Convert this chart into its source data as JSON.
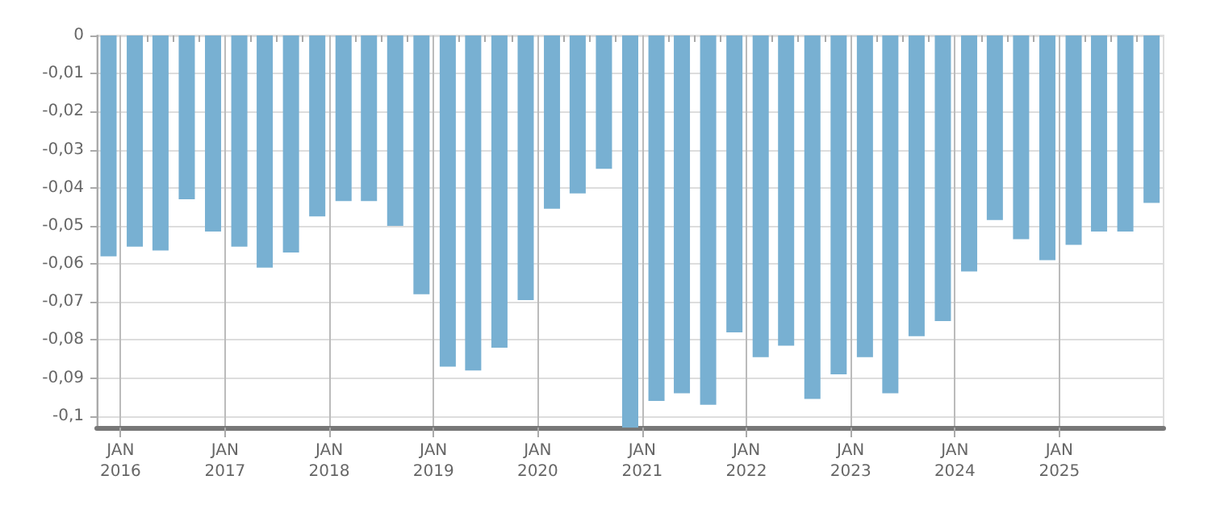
{
  "chart_data": {
    "type": "bar",
    "color": "#78b0d2",
    "x": [
      "2015-11-20",
      "2016-02-20",
      "2016-05-20",
      "2016-08-20",
      "2016-11-20",
      "2017-02-20",
      "2017-05-20",
      "2017-08-20",
      "2017-11-20",
      "2018-02-20",
      "2018-05-20",
      "2018-08-20",
      "2018-11-20",
      "2019-02-20",
      "2019-05-20",
      "2019-08-20",
      "2019-11-20",
      "2020-02-20",
      "2020-05-20",
      "2020-08-20",
      "2020-11-20",
      "2021-02-20",
      "2021-05-20",
      "2021-08-20",
      "2021-11-20",
      "2022-02-20",
      "2022-05-20",
      "2022-08-20",
      "2022-11-20",
      "2023-02-20",
      "2023-05-20",
      "2023-08-20",
      "2023-11-20",
      "2024-02-20",
      "2024-05-20",
      "2024-08-20",
      "2024-11-20",
      "2025-02-20",
      "2025-05-20",
      "2025-08-20",
      "2025-11-20"
    ],
    "values": [
      -0.058,
      -0.0555,
      -0.0565,
      -0.043,
      -0.0515,
      -0.0555,
      -0.061,
      -0.057,
      -0.0475,
      -0.0435,
      -0.0435,
      -0.05,
      -0.068,
      -0.087,
      -0.088,
      -0.082,
      -0.0695,
      -0.0455,
      -0.0415,
      -0.035,
      -0.103,
      -0.096,
      -0.094,
      -0.097,
      -0.078,
      -0.0845,
      -0.0815,
      -0.0955,
      -0.089,
      -0.0845,
      -0.094,
      -0.079,
      -0.075,
      -0.062,
      -0.0485,
      -0.0535,
      -0.059,
      -0.055,
      -0.0515,
      -0.0515,
      -0.044
    ],
    "xlim": [
      "2015-10-10",
      "2026-01-01"
    ],
    "xticks": [
      {
        "value": "2016-01-01",
        "label": "JAN\n2016"
      },
      {
        "value": "2016-04-01",
        "label": null
      },
      {
        "value": "2016-07-01",
        "label": null
      },
      {
        "value": "2016-10-01",
        "label": null
      },
      {
        "value": "2017-01-01",
        "label": "JAN\n2017"
      },
      {
        "value": "2017-04-01",
        "label": null
      },
      {
        "value": "2017-07-01",
        "label": null
      },
      {
        "value": "2017-10-01",
        "label": null
      },
      {
        "value": "2018-01-01",
        "label": "JAN\n2018"
      },
      {
        "value": "2018-04-01",
        "label": null
      },
      {
        "value": "2018-07-01",
        "label": null
      },
      {
        "value": "2018-10-01",
        "label": null
      },
      {
        "value": "2019-01-01",
        "label": "JAN\n2019"
      },
      {
        "value": "2019-04-01",
        "label": null
      },
      {
        "value": "2019-07-01",
        "label": null
      },
      {
        "value": "2019-10-01",
        "label": null
      },
      {
        "value": "2020-01-01",
        "label": "JAN\n2020"
      },
      {
        "value": "2020-04-01",
        "label": null
      },
      {
        "value": "2020-07-01",
        "label": null
      },
      {
        "value": "2020-10-01",
        "label": null
      },
      {
        "value": "2021-01-01",
        "label": "JAN\n2021"
      },
      {
        "value": "2021-04-01",
        "label": null
      },
      {
        "value": "2021-07-01",
        "label": null
      },
      {
        "value": "2021-10-01",
        "label": null
      },
      {
        "value": "2022-01-01",
        "label": "JAN\n2022"
      },
      {
        "value": "2022-04-01",
        "label": null
      },
      {
        "value": "2022-07-01",
        "label": null
      },
      {
        "value": "2022-10-01",
        "label": null
      },
      {
        "value": "2023-01-01",
        "label": "JAN\n2023"
      },
      {
        "value": "2023-04-01",
        "label": null
      },
      {
        "value": "2023-07-01",
        "label": null
      },
      {
        "value": "2023-10-01",
        "label": null
      },
      {
        "value": "2024-01-01",
        "label": "JAN\n2024"
      },
      {
        "value": "2024-04-01",
        "label": null
      },
      {
        "value": "2024-07-01",
        "label": null
      },
      {
        "value": "2024-10-01",
        "label": null
      },
      {
        "value": "2025-01-01",
        "label": "JAN\n2025"
      },
      {
        "value": "2025-04-01",
        "label": null
      },
      {
        "value": "2025-07-01",
        "label": null
      },
      {
        "value": "2025-10-01",
        "label": null
      }
    ],
    "ylim": [
      -0.103,
      0
    ],
    "yticks": [
      0,
      {
        "value": -0.01,
        "label": "-0,01"
      },
      {
        "value": -0.02,
        "label": "-0,02"
      },
      {
        "value": -0.03,
        "label": "-0,03"
      },
      {
        "value": -0.04,
        "label": "-0,04"
      },
      {
        "value": -0.05,
        "label": "-0,05"
      },
      {
        "value": -0.06,
        "label": "-0,06"
      },
      {
        "value": -0.07,
        "label": "-0,07"
      },
      {
        "value": -0.08,
        "label": "-0,08"
      },
      {
        "value": -0.09,
        "label": "-0,09"
      },
      {
        "value": -0.1,
        "label": "-0,1"
      }
    ],
    "grid": true
  }
}
